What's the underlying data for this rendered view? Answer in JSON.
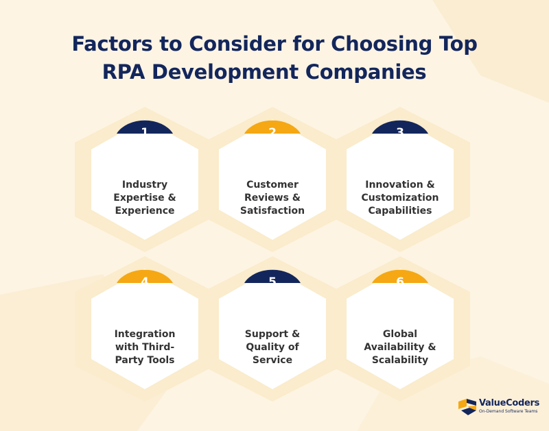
{
  "title": {
    "line1": "Factors to Consider for Choosing Top",
    "line2": "RPA Development Companies"
  },
  "colors": {
    "background": "#fdf4e3",
    "hex_glow": "#faeccc",
    "card": "#ffffff",
    "navy": "#13265c",
    "amber": "#f5a813",
    "text": "#333333"
  },
  "factors": [
    {
      "number": "1",
      "label": "Industry Expertise & Experience",
      "badge_color": "navy"
    },
    {
      "number": "2",
      "label": "Customer Reviews & Satisfaction",
      "badge_color": "amber"
    },
    {
      "number": "3",
      "label": "Innovation & Customization Capabilities",
      "badge_color": "navy"
    },
    {
      "number": "4",
      "label": "Integration with Third-Party Tools",
      "badge_color": "amber"
    },
    {
      "number": "5",
      "label": "Support & Quality of Service",
      "badge_color": "navy"
    },
    {
      "number": "6",
      "label": "Global Availability & Scalability",
      "badge_color": "amber"
    }
  ],
  "logo": {
    "name": "ValueCoders",
    "tagline": "On-Demand Software Teams",
    "icon": "valuecoders-logo-icon"
  }
}
